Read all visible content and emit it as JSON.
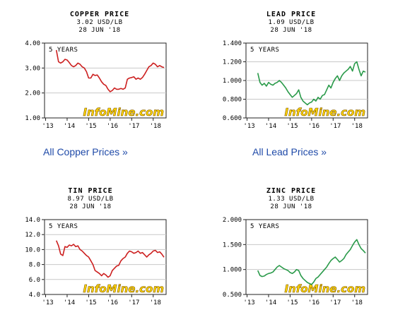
{
  "watermark": "InfoMine.com",
  "links": {
    "copper": "All Copper Prices »",
    "lead": "All Lead Prices »"
  },
  "colors": {
    "copper": "#cc1f1f",
    "lead": "#2a9a4a",
    "tin": "#cc1f1f",
    "zinc": "#2a9a4a",
    "watermark_fill": "#ffd400",
    "watermark_stroke": "#7a5400"
  },
  "chart_data": [
    {
      "id": "copper",
      "type": "line",
      "title": "COPPER PRICE",
      "price": "3.02 USD/LB",
      "date": "28 JUN '18",
      "period": "5 YEARS",
      "yticks": [
        "4.00",
        "3.00",
        "2.00",
        "1.00"
      ],
      "ylim": [
        1.0,
        4.0
      ],
      "xticks": [
        "'13",
        "'14",
        "'15",
        "'16",
        "'17",
        "'18"
      ],
      "x": [
        2013.5,
        2013.6,
        2013.7,
        2013.8,
        2013.9,
        2014.0,
        2014.1,
        2014.2,
        2014.3,
        2014.4,
        2014.5,
        2014.6,
        2014.7,
        2014.8,
        2014.9,
        2015.0,
        2015.1,
        2015.2,
        2015.3,
        2015.4,
        2015.5,
        2015.6,
        2015.7,
        2015.8,
        2015.9,
        2016.0,
        2016.1,
        2016.2,
        2016.3,
        2016.4,
        2016.5,
        2016.6,
        2016.7,
        2016.8,
        2016.9,
        2017.0,
        2017.1,
        2017.2,
        2017.3,
        2017.4,
        2017.5,
        2017.6,
        2017.7,
        2017.8,
        2017.9,
        2018.0,
        2018.1,
        2018.2,
        2018.3,
        2018.4,
        2018.5
      ],
      "y": [
        3.72,
        3.25,
        3.2,
        3.25,
        3.35,
        3.32,
        3.22,
        3.1,
        3.05,
        3.1,
        3.2,
        3.15,
        3.05,
        3.0,
        2.85,
        2.6,
        2.6,
        2.75,
        2.7,
        2.72,
        2.6,
        2.45,
        2.35,
        2.3,
        2.15,
        2.05,
        2.1,
        2.2,
        2.15,
        2.15,
        2.18,
        2.15,
        2.2,
        2.55,
        2.6,
        2.62,
        2.65,
        2.55,
        2.6,
        2.55,
        2.62,
        2.75,
        2.9,
        3.05,
        3.1,
        3.2,
        3.15,
        3.05,
        3.1,
        3.05,
        3.02
      ]
    },
    {
      "id": "lead",
      "type": "line",
      "title": "LEAD PRICE",
      "price": "1.09 USD/LB",
      "date": "28 JUN '18",
      "period": "5 YEARS",
      "yticks": [
        "1.400",
        "1.200",
        "1.000",
        "0.800",
        "0.600"
      ],
      "ylim": [
        0.6,
        1.4
      ],
      "xticks": [
        "'13",
        "'14",
        "'15",
        "'16",
        "'17",
        "'18"
      ],
      "x": [
        2013.5,
        2013.6,
        2013.7,
        2013.8,
        2013.9,
        2014.0,
        2014.1,
        2014.2,
        2014.3,
        2014.4,
        2014.5,
        2014.6,
        2014.7,
        2014.8,
        2014.9,
        2015.0,
        2015.1,
        2015.2,
        2015.3,
        2015.4,
        2015.5,
        2015.6,
        2015.7,
        2015.8,
        2015.9,
        2016.0,
        2016.1,
        2016.2,
        2016.3,
        2016.4,
        2016.5,
        2016.6,
        2016.7,
        2016.8,
        2016.9,
        2017.0,
        2017.1,
        2017.2,
        2017.3,
        2017.4,
        2017.5,
        2017.6,
        2017.7,
        2017.8,
        2017.9,
        2018.0,
        2018.1,
        2018.2,
        2018.3,
        2018.4,
        2018.5
      ],
      "y": [
        1.08,
        0.98,
        0.95,
        0.97,
        0.94,
        0.98,
        0.96,
        0.95,
        0.97,
        0.98,
        1.0,
        0.98,
        0.95,
        0.92,
        0.88,
        0.85,
        0.82,
        0.84,
        0.86,
        0.9,
        0.82,
        0.78,
        0.76,
        0.74,
        0.76,
        0.77,
        0.8,
        0.78,
        0.82,
        0.8,
        0.84,
        0.85,
        0.9,
        0.95,
        0.92,
        0.98,
        1.02,
        1.05,
        1.0,
        1.05,
        1.08,
        1.1,
        1.12,
        1.15,
        1.1,
        1.18,
        1.2,
        1.12,
        1.05,
        1.1,
        1.09
      ]
    },
    {
      "id": "tin",
      "type": "line",
      "title": "TIN PRICE",
      "price": "8.97 USD/LB",
      "date": "28 JUN '18",
      "period": "5 YEARS",
      "yticks": [
        "14.0",
        "12.0",
        "10.0",
        "8.0",
        "6.0",
        "4.0"
      ],
      "ylim": [
        4.0,
        14.0
      ],
      "xticks": [
        "'13",
        "'14",
        "'15",
        "'16",
        "'17",
        "'18"
      ],
      "x": [
        2013.5,
        2013.6,
        2013.7,
        2013.8,
        2013.9,
        2014.0,
        2014.1,
        2014.2,
        2014.3,
        2014.4,
        2014.5,
        2014.6,
        2014.7,
        2014.8,
        2014.9,
        2015.0,
        2015.1,
        2015.2,
        2015.3,
        2015.4,
        2015.5,
        2015.6,
        2015.7,
        2015.8,
        2015.9,
        2016.0,
        2016.1,
        2016.2,
        2016.3,
        2016.4,
        2016.5,
        2016.6,
        2016.7,
        2016.8,
        2016.9,
        2017.0,
        2017.1,
        2017.2,
        2017.3,
        2017.4,
        2017.5,
        2017.6,
        2017.7,
        2017.8,
        2017.9,
        2018.0,
        2018.1,
        2018.2,
        2018.3,
        2018.4,
        2018.5
      ],
      "y": [
        11.2,
        10.5,
        9.4,
        9.2,
        10.4,
        10.3,
        10.6,
        10.5,
        10.7,
        10.4,
        10.5,
        10.0,
        9.8,
        9.5,
        9.2,
        9.0,
        8.5,
        8.0,
        7.2,
        7.0,
        6.8,
        6.5,
        6.8,
        6.6,
        6.3,
        6.5,
        7.2,
        7.5,
        7.8,
        7.9,
        8.5,
        8.8,
        9.0,
        9.5,
        9.8,
        9.7,
        9.5,
        9.6,
        9.8,
        9.5,
        9.6,
        9.3,
        9.0,
        9.3,
        9.5,
        9.8,
        9.9,
        9.6,
        9.7,
        9.4,
        8.97
      ]
    },
    {
      "id": "zinc",
      "type": "line",
      "title": "ZINC PRICE",
      "price": "1.33 USD/LB",
      "date": "28 JUN '18",
      "period": "5 YEARS",
      "yticks": [
        "2.000",
        "1.500",
        "1.000",
        "0.500"
      ],
      "ylim": [
        0.5,
        2.0
      ],
      "xticks": [
        "'13",
        "'14",
        "'15",
        "'16",
        "'17",
        "'18"
      ],
      "x": [
        2013.5,
        2013.6,
        2013.7,
        2013.8,
        2013.9,
        2014.0,
        2014.1,
        2014.2,
        2014.3,
        2014.4,
        2014.5,
        2014.6,
        2014.7,
        2014.8,
        2014.9,
        2015.0,
        2015.1,
        2015.2,
        2015.3,
        2015.4,
        2015.5,
        2015.6,
        2015.7,
        2015.8,
        2015.9,
        2016.0,
        2016.1,
        2016.2,
        2016.3,
        2016.4,
        2016.5,
        2016.6,
        2016.7,
        2016.8,
        2016.9,
        2017.0,
        2017.1,
        2017.2,
        2017.3,
        2017.4,
        2017.5,
        2017.6,
        2017.7,
        2017.8,
        2017.9,
        2018.0,
        2018.1,
        2018.2,
        2018.3,
        2018.4,
        2018.5
      ],
      "y": [
        0.98,
        0.88,
        0.86,
        0.87,
        0.9,
        0.92,
        0.93,
        0.95,
        1.0,
        1.05,
        1.08,
        1.05,
        1.02,
        1.0,
        0.98,
        0.94,
        0.92,
        0.95,
        1.0,
        0.98,
        0.88,
        0.82,
        0.78,
        0.74,
        0.72,
        0.7,
        0.75,
        0.82,
        0.85,
        0.9,
        0.95,
        1.0,
        1.05,
        1.12,
        1.18,
        1.22,
        1.25,
        1.2,
        1.15,
        1.18,
        1.22,
        1.3,
        1.35,
        1.4,
        1.48,
        1.55,
        1.6,
        1.5,
        1.42,
        1.38,
        1.33
      ]
    }
  ]
}
